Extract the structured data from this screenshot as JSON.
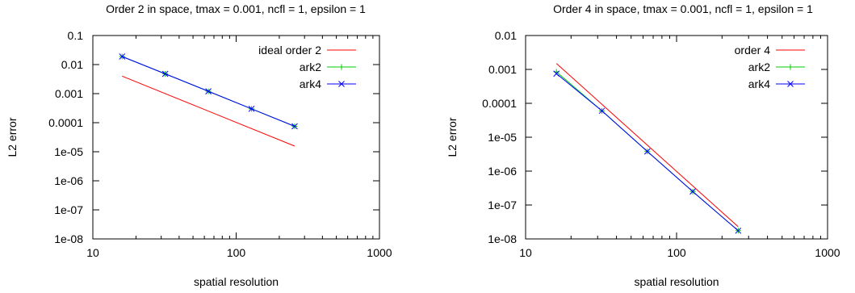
{
  "chart_data": [
    {
      "type": "line",
      "title": "Order 2 in space, tmax = 0.001, ncfl = 1, epsilon = 1",
      "xlabel": "spatial resolution",
      "ylabel": "L2 error",
      "xscale": "log",
      "yscale": "log",
      "xlim": [
        10,
        1000
      ],
      "ylim": [
        1e-08,
        0.1
      ],
      "xticks": [
        10,
        100,
        1000
      ],
      "xtick_labels": [
        "10",
        "100",
        "1000"
      ],
      "yticks": [
        1e-08,
        1e-07,
        1e-06,
        1e-05,
        0.0001,
        0.001,
        0.01,
        0.1
      ],
      "ytick_labels": [
        "1e-08",
        "1e-07",
        "1e-06",
        "1e-05",
        "0.0001",
        "0.001",
        "0.01",
        "0.1"
      ],
      "grid": false,
      "legend_position": "top-right",
      "series": [
        {
          "name": "ideal order 2",
          "color": "#ff0000",
          "marker": "none",
          "x": [
            16,
            256
          ],
          "y": [
            0.004,
            1.56e-05
          ]
        },
        {
          "name": "ark2",
          "color": "#00cc00",
          "marker": "plus",
          "x": [
            16,
            32,
            64,
            128,
            256
          ],
          "y": [
            0.019,
            0.0048,
            0.0012,
            0.0003,
            7.5e-05
          ]
        },
        {
          "name": "ark4",
          "color": "#0000ff",
          "marker": "cross",
          "x": [
            16,
            32,
            64,
            128,
            256
          ],
          "y": [
            0.019,
            0.0048,
            0.0012,
            0.0003,
            7.5e-05
          ]
        }
      ]
    },
    {
      "type": "line",
      "title": "Order 4 in space, tmax = 0.001, ncfl = 1, epsilon = 1",
      "xlabel": "spatial resolution",
      "ylabel": "L2 error",
      "xscale": "log",
      "yscale": "log",
      "xlim": [
        10,
        1000
      ],
      "ylim": [
        1e-08,
        0.01
      ],
      "xticks": [
        10,
        100,
        1000
      ],
      "xtick_labels": [
        "10",
        "100",
        "1000"
      ],
      "yticks": [
        1e-08,
        1e-07,
        1e-06,
        1e-05,
        0.0001,
        0.001,
        0.01
      ],
      "ytick_labels": [
        "1e-08",
        "1e-07",
        "1e-06",
        "1e-05",
        "0.0001",
        "0.001",
        "0.01"
      ],
      "grid": false,
      "legend_position": "top-right",
      "series": [
        {
          "name": "order 4",
          "color": "#ff0000",
          "marker": "none",
          "x": [
            16,
            256
          ],
          "y": [
            0.0015,
            2.29e-08
          ]
        },
        {
          "name": "ark2",
          "color": "#00cc00",
          "marker": "plus",
          "x": [
            16,
            32,
            64,
            128,
            256
          ],
          "y": [
            0.00085,
            6e-05,
            3.8e-06,
            2.5e-07,
            1.75e-08
          ]
        },
        {
          "name": "ark4",
          "color": "#0000ff",
          "marker": "cross",
          "x": [
            16,
            32,
            64,
            128,
            256
          ],
          "y": [
            0.00075,
            6e-05,
            3.8e-06,
            2.5e-07,
            1.75e-08
          ]
        }
      ]
    }
  ]
}
